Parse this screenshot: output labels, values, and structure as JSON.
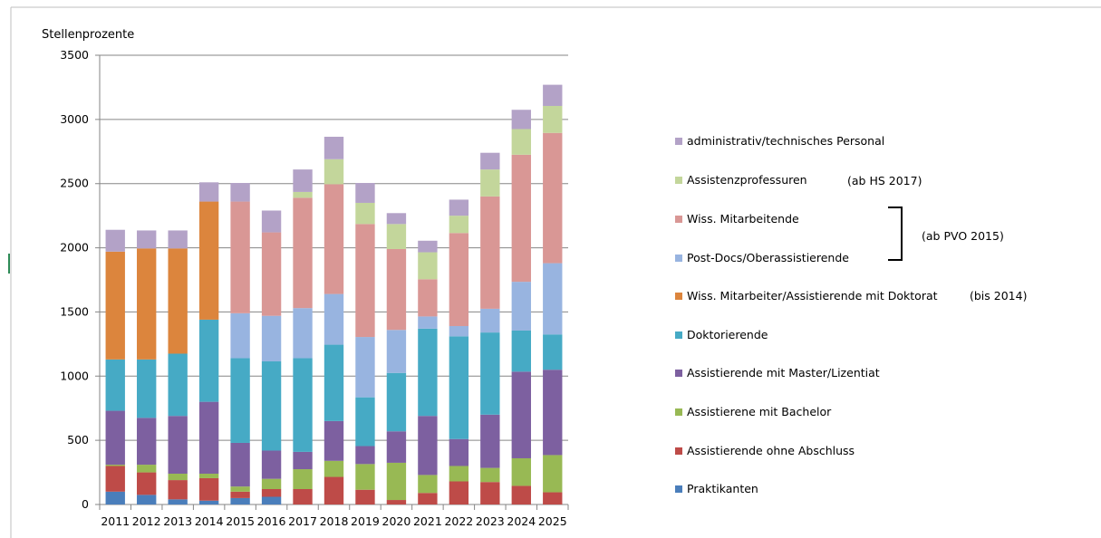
{
  "chart_data": {
    "type": "bar",
    "stacked": true,
    "title": "",
    "ylabel": "Stellenprozente",
    "xlabel": "",
    "ylim": [
      0,
      3500
    ],
    "yticks": [
      0,
      500,
      1000,
      1500,
      2000,
      2500,
      3000,
      3500
    ],
    "grid": true,
    "legend_position": "right",
    "categories": [
      "2011",
      "2012",
      "2013",
      "2014",
      "2015",
      "2016",
      "2017",
      "2018",
      "2019",
      "2020",
      "2021",
      "2022",
      "2023",
      "2024",
      "2025"
    ],
    "series": [
      {
        "name": "Praktikanten",
        "color": "#4a7ebb",
        "values": [
          100,
          75,
          40,
          30,
          50,
          60,
          0,
          0,
          0,
          0,
          0,
          0,
          0,
          0,
          0
        ]
      },
      {
        "name": "Assistierende ohne Abschluss",
        "color": "#be4b48",
        "values": [
          200,
          175,
          150,
          175,
          50,
          60,
          120,
          215,
          115,
          35,
          90,
          180,
          175,
          145,
          95
        ]
      },
      {
        "name": "Assistierene mit Bachelor",
        "color": "#98b954",
        "values": [
          10,
          60,
          50,
          35,
          40,
          80,
          155,
          125,
          200,
          290,
          140,
          120,
          110,
          215,
          290
        ]
      },
      {
        "name": "Assistierende mit Master/Lizentiat",
        "color": "#7d60a0",
        "values": [
          420,
          365,
          450,
          560,
          340,
          220,
          135,
          310,
          140,
          245,
          460,
          210,
          415,
          675,
          665
        ]
      },
      {
        "name": "Doktorierende",
        "color": "#46aac5",
        "values": [
          400,
          455,
          485,
          640,
          660,
          695,
          730,
          595,
          380,
          455,
          680,
          800,
          640,
          320,
          275
        ]
      },
      {
        "name": "Wiss. Mitarbeiter/Assistierende mit Doktorat",
        "color": "#dc853d",
        "values": [
          840,
          865,
          820,
          920,
          0,
          0,
          0,
          0,
          0,
          0,
          0,
          0,
          0,
          0,
          0
        ]
      },
      {
        "name": "Post-Docs/Oberassistierende",
        "color": "#98b4e0",
        "values": [
          0,
          0,
          0,
          0,
          350,
          355,
          390,
          395,
          470,
          335,
          95,
          80,
          185,
          380,
          555
        ]
      },
      {
        "name": "Wiss. Mitarbeitende",
        "color": "#d99795",
        "values": [
          0,
          0,
          0,
          0,
          870,
          650,
          860,
          855,
          880,
          630,
          290,
          725,
          875,
          990,
          1015
        ]
      },
      {
        "name": "Assistenzprofessuren",
        "color": "#c3d69b",
        "values": [
          0,
          0,
          0,
          0,
          0,
          0,
          45,
          195,
          165,
          195,
          210,
          135,
          210,
          200,
          210
        ]
      },
      {
        "name": "administrativ/technisches Personal",
        "color": "#b3a2c7",
        "values": [
          170,
          140,
          140,
          150,
          145,
          170,
          175,
          175,
          155,
          85,
          90,
          125,
          130,
          150,
          165
        ]
      }
    ],
    "legend": {
      "order": [
        "administrativ/technisches Personal",
        "Assistenzprofessuren",
        "Wiss. Mitarbeitende",
        "Post-Docs/Oberassistierende",
        "Wiss. Mitarbeiter/Assistierende mit Doktorat",
        "Doktorierende",
        "Assistierende mit Master/Lizentiat",
        "Assistierene mit Bachelor",
        "Assistierende ohne Abschluss",
        "Praktikanten"
      ],
      "annotations": {
        "assistenz": "(ab HS 2017)",
        "pvo": "(ab PVO 2015)",
        "bis2014": "(bis 2014)"
      }
    }
  }
}
